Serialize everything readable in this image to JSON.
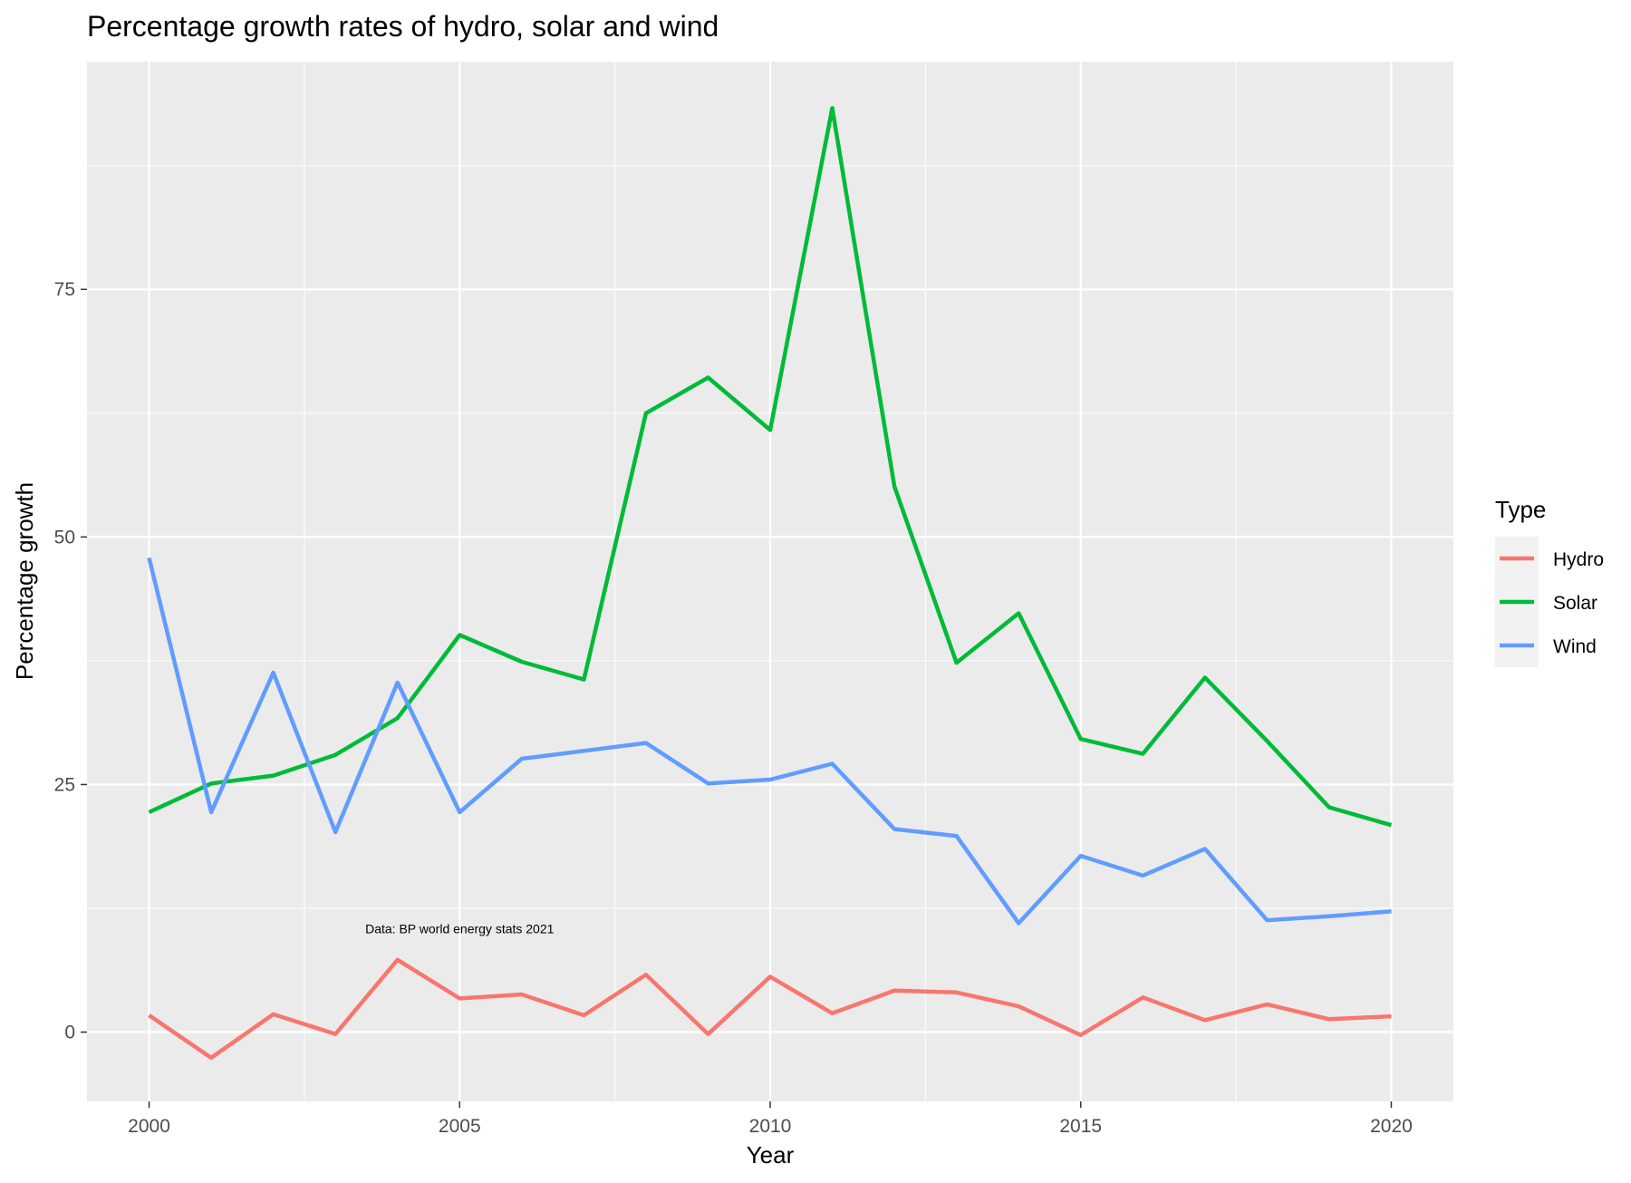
{
  "chart_data": {
    "type": "line",
    "title": "Percentage growth rates of hydro, solar and wind",
    "xlabel": "Year",
    "ylabel": "Percentage growth",
    "xlim": [
      1999,
      2021
    ],
    "ylim": [
      -7,
      98
    ],
    "x_ticks": [
      2000,
      2005,
      2010,
      2015,
      2020
    ],
    "y_ticks": [
      0,
      25,
      50,
      75
    ],
    "grid": true,
    "panel_background": "#EBEBEB",
    "legend": {
      "title": "Type",
      "placement": "right"
    },
    "annotation": {
      "text": "Data: BP world energy stats 2021",
      "x": 2005,
      "y": 10
    },
    "x": [
      2000,
      2001,
      2002,
      2003,
      2004,
      2005,
      2006,
      2007,
      2008,
      2009,
      2010,
      2011,
      2012,
      2013,
      2014,
      2015,
      2016,
      2017,
      2018,
      2019,
      2020
    ],
    "series": [
      {
        "name": "Hydro",
        "color": "#F8766D",
        "values": [
          1.7,
          -2.6,
          1.8,
          -0.2,
          7.3,
          3.4,
          3.8,
          1.7,
          5.8,
          -0.2,
          5.6,
          1.9,
          4.2,
          4.0,
          2.6,
          -0.3,
          3.5,
          1.2,
          2.8,
          1.3,
          1.6
        ]
      },
      {
        "name": "Solar",
        "color": "#00BA38",
        "values": [
          22.2,
          25.1,
          25.9,
          28.0,
          31.7,
          40.1,
          37.4,
          35.6,
          62.5,
          66.1,
          60.8,
          93.3,
          55.1,
          37.3,
          42.3,
          29.6,
          28.1,
          35.8,
          29.4,
          22.7,
          20.9
        ]
      },
      {
        "name": "Wind",
        "color": "#619CFF",
        "values": [
          47.9,
          22.2,
          36.3,
          20.2,
          35.3,
          22.2,
          27.6,
          28.4,
          29.2,
          25.1,
          25.5,
          27.1,
          20.5,
          19.8,
          11.0,
          17.8,
          15.8,
          18.5,
          11.3,
          11.7,
          12.2
        ]
      }
    ]
  }
}
